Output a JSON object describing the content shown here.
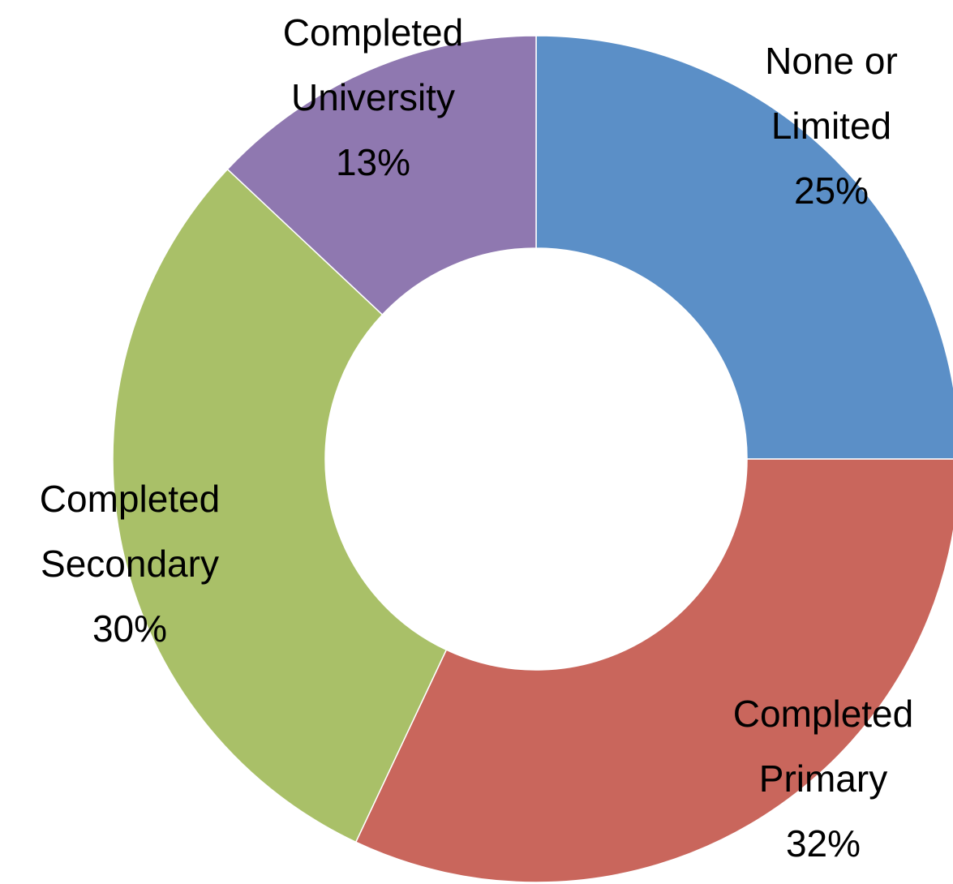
{
  "chart_data": {
    "type": "donut",
    "categories": [
      "None or Limited",
      "Completed Primary",
      "Completed Secondary",
      "Completed University"
    ],
    "values": [
      25,
      32,
      30,
      13
    ],
    "value_labels": [
      "25%",
      "32%",
      "30%",
      "13%"
    ],
    "colors": [
      "#5b8fc7",
      "#c9665c",
      "#a9c068",
      "#8f78b0"
    ]
  }
}
